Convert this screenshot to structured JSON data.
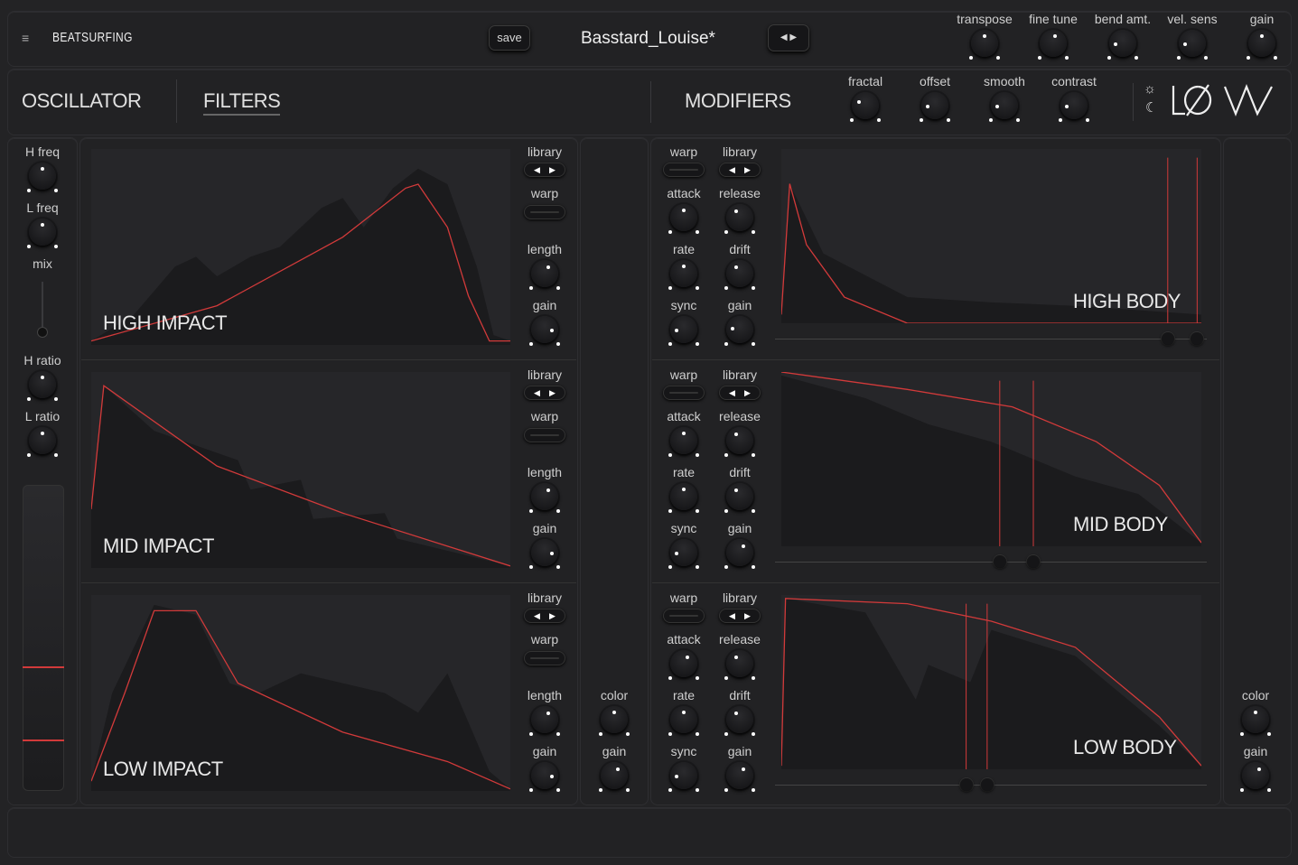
{
  "header": {
    "menu_icon": "hamburger-icon",
    "brand": "BEATSURFING",
    "save_label": "save",
    "preset_name": "Basstard_Louise*",
    "preset_nav_icon": "left-right-arrows-icon",
    "knobs": [
      {
        "label": "transpose",
        "value": 0.5
      },
      {
        "label": "fine tune",
        "value": 0.55
      },
      {
        "label": "bend amt.",
        "value": 0.15
      },
      {
        "label": "vel. sens",
        "value": 0.15
      },
      {
        "label": "gain",
        "value": 0.5
      }
    ]
  },
  "tabs": {
    "oscillator": "OSCILLATOR",
    "filters": "FILTERS",
    "modifiers": "MODIFIERS",
    "active": "FILTERS"
  },
  "modifiers": [
    {
      "label": "fractal",
      "value": 0.28
    },
    {
      "label": "offset",
      "value": 0.15
    },
    {
      "label": "smooth",
      "value": 0.15
    },
    {
      "label": "contrast",
      "value": 0.15
    }
  ],
  "theme": {
    "sun_icon": "sun-icon",
    "moon_icon": "moon-icon",
    "logo": "LØW"
  },
  "left": {
    "knobs": [
      {
        "label": "H freq",
        "value": 0.5
      },
      {
        "label": "L freq",
        "value": 0.5
      },
      {
        "label": "H ratio",
        "value": 0.5
      },
      {
        "label": "L ratio",
        "value": 0.5
      }
    ],
    "mix_label": "mix",
    "mix_value": 0.1
  },
  "impacts": [
    {
      "title": "HIGH IMPACT",
      "library": "library",
      "warp": "warp",
      "length": {
        "label": "length",
        "value": 0.62
      },
      "gain": {
        "label": "gain",
        "value": 0.85
      }
    },
    {
      "title": "MID IMPACT",
      "library": "library",
      "warp": "warp",
      "length": {
        "label": "length",
        "value": 0.62
      },
      "gain": {
        "label": "gain",
        "value": 0.85
      }
    },
    {
      "title": "LOW IMPACT",
      "library": "library",
      "warp": "warp",
      "length": {
        "label": "length",
        "value": 0.62
      },
      "gain": {
        "label": "gain",
        "value": 0.85
      }
    }
  ],
  "impact_out": {
    "color": {
      "label": "color",
      "value": 0.5
    },
    "gain": {
      "label": "gain",
      "value": 0.6
    }
  },
  "bodies": [
    {
      "title": "HIGH BODY",
      "warp": "warp",
      "library": "library",
      "knobs": [
        {
          "label": "attack",
          "value": 0.5
        },
        {
          "label": "release",
          "value": 0.4
        },
        {
          "label": "rate",
          "value": 0.5
        },
        {
          "label": "drift",
          "value": 0.4
        },
        {
          "label": "sync",
          "value": 0.15
        },
        {
          "label": "gain",
          "value": 0.2
        }
      ]
    },
    {
      "title": "MID BODY",
      "warp": "warp",
      "library": "library",
      "knobs": [
        {
          "label": "attack",
          "value": 0.5
        },
        {
          "label": "release",
          "value": 0.4
        },
        {
          "label": "rate",
          "value": 0.5
        },
        {
          "label": "drift",
          "value": 0.4
        },
        {
          "label": "sync",
          "value": 0.15
        },
        {
          "label": "gain",
          "value": 0.6
        }
      ]
    },
    {
      "title": "LOW BODY",
      "warp": "warp",
      "library": "library",
      "knobs": [
        {
          "label": "attack",
          "value": 0.6
        },
        {
          "label": "release",
          "value": 0.4
        },
        {
          "label": "rate",
          "value": 0.5
        },
        {
          "label": "drift",
          "value": 0.4
        },
        {
          "label": "sync",
          "value": 0.15
        },
        {
          "label": "gain",
          "value": 0.6
        }
      ]
    }
  ],
  "body_out": {
    "color": {
      "label": "color",
      "value": 0.5
    },
    "gain": {
      "label": "gain",
      "value": 0.6
    }
  },
  "colors": {
    "accent": "#d23a3a",
    "background": "#232325",
    "graph": "#262629"
  }
}
